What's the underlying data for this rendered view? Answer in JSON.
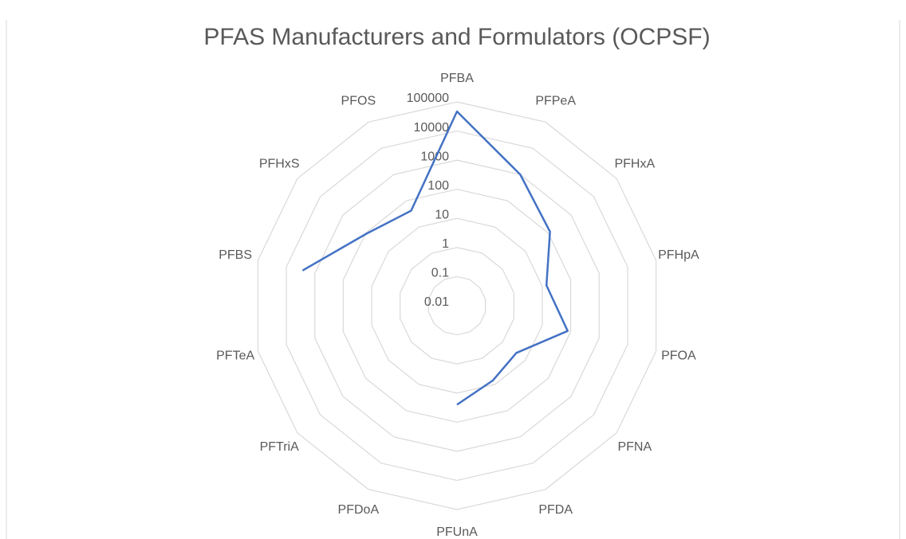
{
  "chart_data": {
    "type": "radar",
    "title": "PFAS Manufacturers and Formulators (OCPSF)",
    "categories": [
      "PFBA",
      "PFPeA",
      "PFHxA",
      "PFHpA",
      "PFOA",
      "PFNA",
      "PFDA",
      "PFUnA",
      "PFDoA",
      "PFTriA",
      "PFTeA",
      "PFBS",
      "PFHxS",
      "PFOS"
    ],
    "series": [
      {
        "name": "OCPSF",
        "color": "#4472c4",
        "values": [
          47000,
          1000,
          120,
          14,
          78,
          4,
          7,
          25,
          null,
          null,
          null,
          2700,
          93,
          42
        ]
      }
    ],
    "log_scale": true,
    "ylim": [
      0.01,
      100000
    ],
    "yticks": [
      0.01,
      0.1,
      1,
      10,
      100,
      1000,
      10000,
      100000
    ],
    "grid": true
  }
}
